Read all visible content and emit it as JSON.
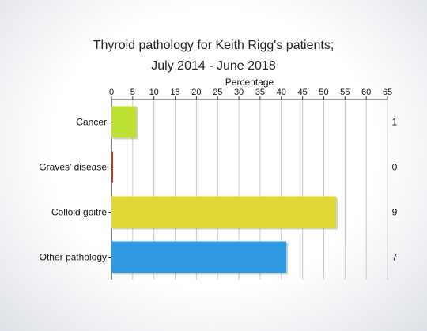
{
  "chart_data": {
    "type": "bar",
    "orientation": "horizontal",
    "title_line1": "Thyroid pathology for Keith Rigg's patients;",
    "title_line2": "July 2014 - June 2018",
    "xlabel": "Percentage",
    "xlim": [
      0,
      65
    ],
    "xticks": [
      "0",
      "5",
      "10",
      "15",
      "20",
      "25",
      "30",
      "35",
      "40",
      "45",
      "50",
      "55",
      "60",
      "65"
    ],
    "categories": [
      "Cancer",
      "Graves' disease",
      "Colloid goitre",
      "Other pathology"
    ],
    "values": [
      5.9,
      0,
      52.9,
      41.2
    ],
    "counts": [
      "1",
      "0",
      "9",
      "7"
    ],
    "colors": [
      "#bde034",
      "#c0392b",
      "#dfd836",
      "#2f9ae3"
    ],
    "grid": true
  }
}
